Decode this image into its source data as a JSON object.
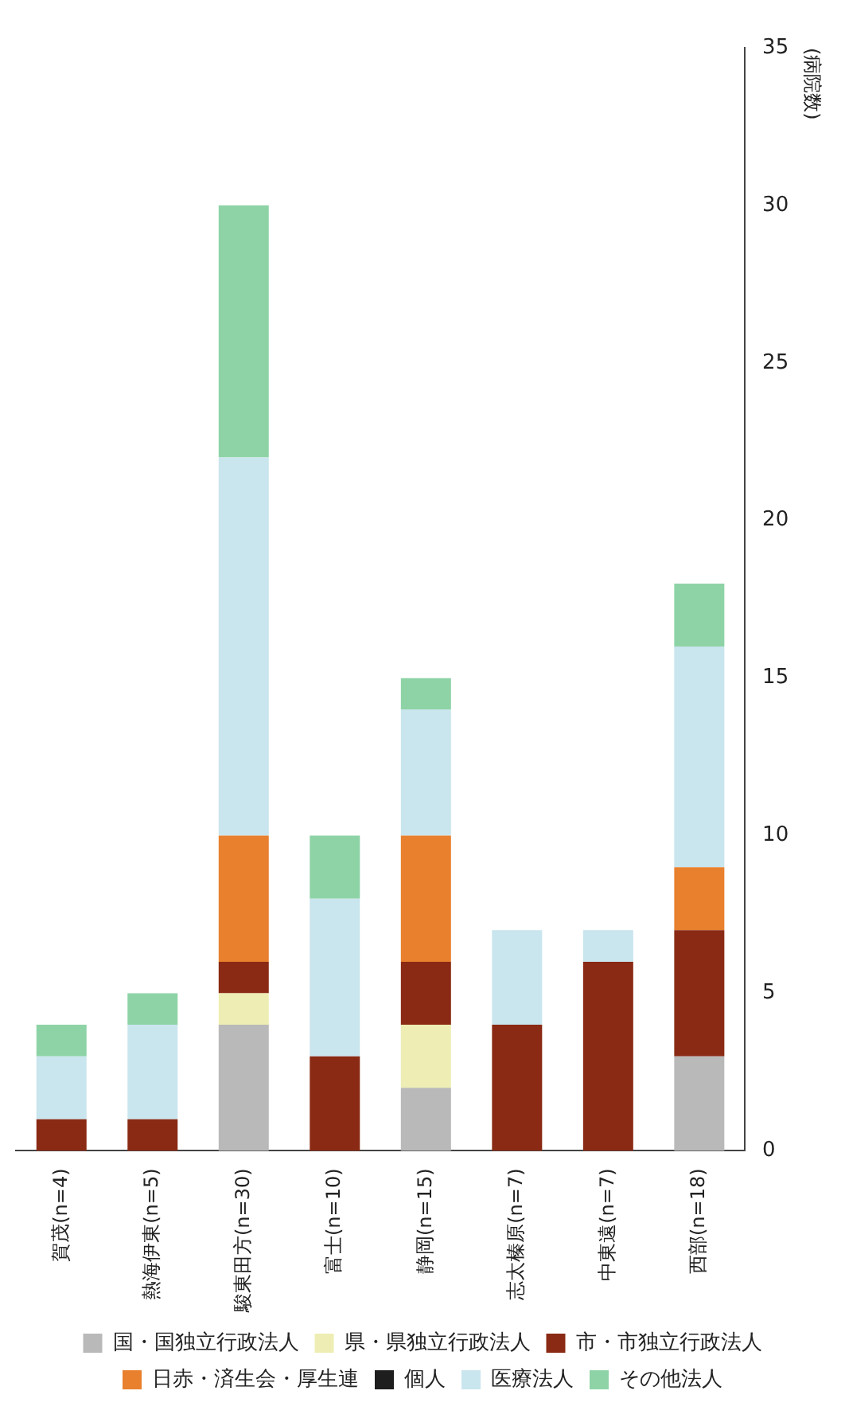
{
  "chart_data": {
    "type": "bar",
    "stacked": true,
    "ylabel": "(病院数)",
    "categories": [
      "賀茂(n=4)",
      "熱海伊東(n=5)",
      "駿東田方(n=30)",
      "富士(n=10)",
      "静岡(n=15)",
      "志太榛原(n=7)",
      "中東遠(n=7)",
      "西部(n=18)"
    ],
    "series": [
      {
        "name": "国・国独立行政法人",
        "color": "#b9b9b9",
        "values": [
          0,
          0,
          4,
          0,
          2,
          0,
          0,
          3
        ]
      },
      {
        "name": "県・県独立行政法人",
        "color": "#eeeeb4",
        "values": [
          0,
          0,
          1,
          0,
          2,
          0,
          0,
          0
        ]
      },
      {
        "name": "市・市独立行政法人",
        "color": "#8a2a14",
        "values": [
          1,
          1,
          1,
          3,
          2,
          4,
          6,
          4
        ]
      },
      {
        "name": "日赤・済生会・厚生連",
        "color": "#e8802e",
        "values": [
          0,
          0,
          4,
          0,
          4,
          0,
          0,
          2
        ]
      },
      {
        "name": "個人",
        "color": "#1e1e1e",
        "values": [
          0,
          0,
          0,
          0,
          0,
          0,
          0,
          0
        ]
      },
      {
        "name": "医療法人",
        "color": "#c9e5ee",
        "values": [
          2,
          3,
          12,
          5,
          4,
          3,
          1,
          7
        ]
      },
      {
        "name": "その他法人",
        "color": "#8ed3a6",
        "values": [
          1,
          1,
          8,
          2,
          1,
          0,
          0,
          2
        ]
      }
    ],
    "ylim": [
      0,
      35
    ],
    "yticks": [
      0,
      5,
      10,
      15,
      20,
      25,
      30,
      35
    ],
    "grid": false,
    "legend": "bottom"
  }
}
